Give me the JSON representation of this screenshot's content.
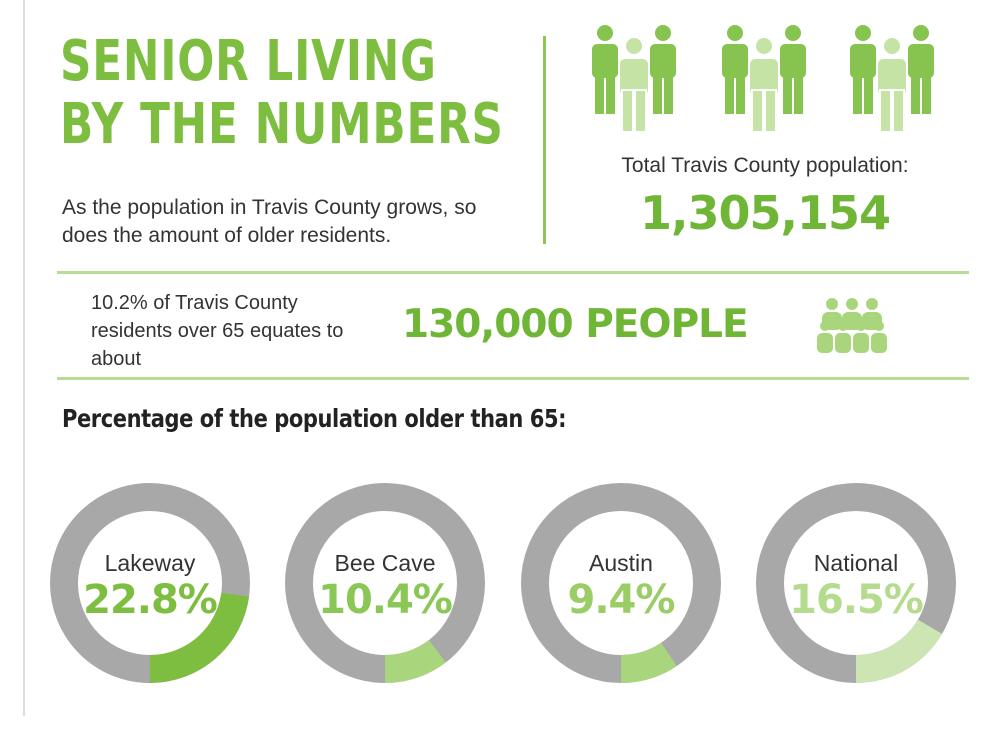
{
  "header": {
    "title_line1": "SENIOR LIVING",
    "title_line2": "BY THE NUMBERS",
    "intro": "As the population in Travis County grows, so does the amount of older residents."
  },
  "population": {
    "label": "Total Travis County population:",
    "value": "1,305,154",
    "icon": "people-group-icon"
  },
  "older": {
    "text": "10.2% of Travis County residents over 65 equates to about",
    "value": "130,000 PEOPLE",
    "icon": "seniors-group-icon"
  },
  "section_title": "Percentage of the population older than 65:",
  "colors": {
    "green": "#7dbd3f",
    "light_green": "#a9d67c",
    "gray": "#a8a8a8",
    "text": "#333333"
  },
  "chart_data": {
    "type": "pie",
    "variant": "donut",
    "title": "Percentage of the population older than 65:",
    "categories": [
      "Lakeway",
      "Bee Cave",
      "Austin",
      "National"
    ],
    "values": [
      22.8,
      10.4,
      9.4,
      16.5
    ],
    "value_labels": [
      "22.8%",
      "10.4%",
      "9.4%",
      "16.5%"
    ],
    "unit": "%",
    "ring_colors": [
      "#7dbd3f",
      "#a9d67c",
      "#a9d67c",
      "#cce5b2"
    ],
    "label_colors": [
      "#7dbd3f",
      "#8ac756",
      "#9acd66",
      "#b5dc8e"
    ],
    "remainder_color": "#a8a8a8"
  }
}
